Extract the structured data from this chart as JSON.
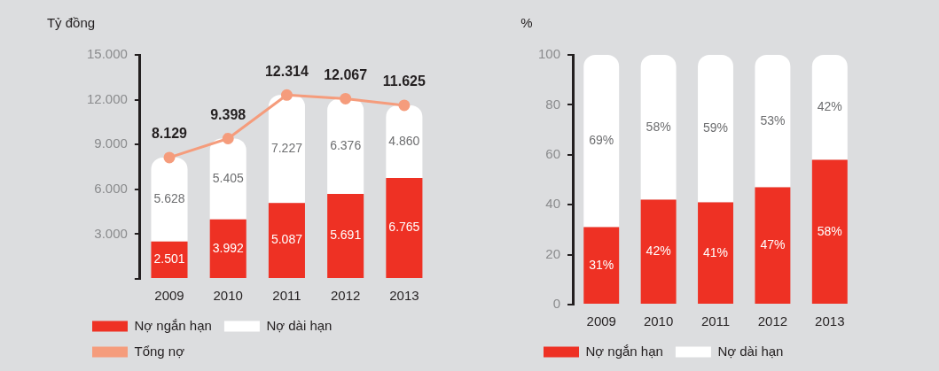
{
  "chart_data": [
    {
      "type": "bar",
      "stacked": true,
      "ylabel": "Tỷ đồng",
      "categories": [
        "2009",
        "2010",
        "2011",
        "2012",
        "2013"
      ],
      "ylim": [
        0,
        15000
      ],
      "yticks": [
        {
          "value": 0,
          "label": null
        },
        {
          "value": 3000,
          "label": "3.000"
        },
        {
          "value": 6000,
          "label": "6.000"
        },
        {
          "value": 9000,
          "label": "9.000"
        },
        {
          "value": 12000,
          "label": "12.000"
        },
        {
          "value": 15000,
          "label": "15.000"
        }
      ],
      "grid": false,
      "legend": "bottom",
      "marker": "circle",
      "series": [
        {
          "name": "Nợ ngắn hạn",
          "color": "#ee3124",
          "values": [
            2501,
            3992,
            5087,
            5691,
            6765
          ],
          "value_labels": [
            "2.501",
            "3.992",
            "5.087",
            "5.691",
            "6.765"
          ]
        },
        {
          "name": "Nợ dài hạn",
          "color": "#ffffff",
          "values": [
            5628,
            5405,
            7227,
            6376,
            4860
          ],
          "value_labels": [
            "5.628",
            "5.405",
            "7.227",
            "6.376",
            "4.860"
          ]
        },
        {
          "name": "Tổng nợ",
          "type": "line",
          "color": "#f59c7c",
          "values": [
            8129,
            9398,
            12314,
            12067,
            11625
          ],
          "value_labels": [
            "8.129",
            "9.398",
            "12.314",
            "12.067",
            "11.625"
          ]
        }
      ]
    },
    {
      "type": "bar",
      "stacked": true,
      "ylabel": "%",
      "categories": [
        "2009",
        "2010",
        "2011",
        "2012",
        "2013"
      ],
      "ylim": [
        0,
        100
      ],
      "yticks": [
        0,
        20,
        40,
        60,
        80,
        100
      ],
      "grid": false,
      "legend": "bottom",
      "series": [
        {
          "name": "Nợ ngắn hạn",
          "color": "#ee3124",
          "values": [
            31,
            42,
            41,
            47,
            58
          ],
          "value_labels": [
            "31%",
            "42%",
            "41%",
            "47%",
            "58%"
          ]
        },
        {
          "name": "Nợ dài hạn",
          "color": "#ffffff",
          "values": [
            69,
            58,
            59,
            53,
            42
          ],
          "value_labels": [
            "69%",
            "58%",
            "59%",
            "53%",
            "42%"
          ]
        }
      ]
    }
  ]
}
